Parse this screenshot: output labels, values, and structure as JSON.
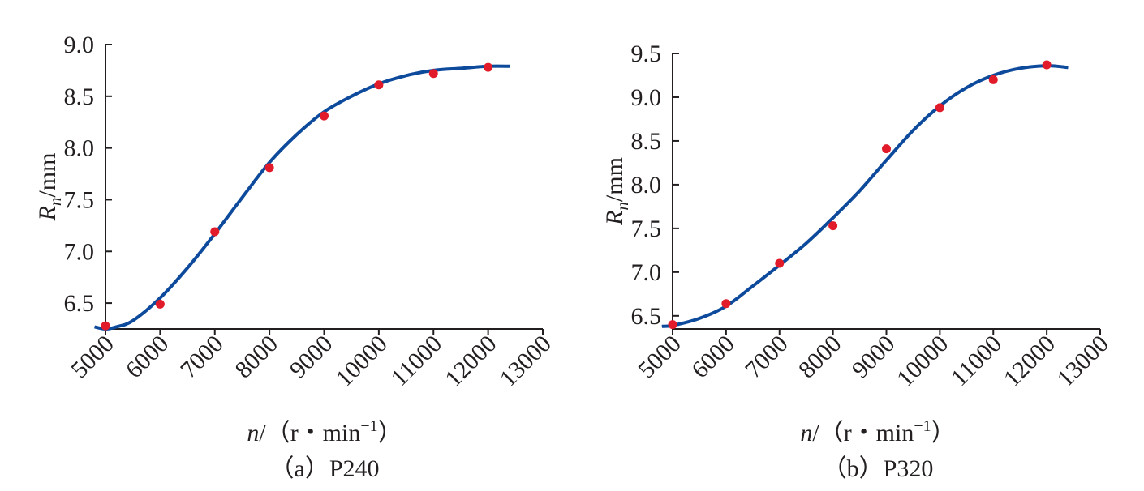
{
  "chart_data": [
    {
      "type": "line",
      "caption": "（a）P240",
      "xlabel": {
        "var": "n",
        "unit_prefix": "/（r・min",
        "unit_sup": "−1",
        "unit_suffix": "）"
      },
      "ylabel": {
        "var": "R",
        "sub": "n",
        "unit": "/mm"
      },
      "xlim": [
        5000,
        13000
      ],
      "ylim": [
        6.25,
        9.0
      ],
      "x_ticks": [
        5000,
        6000,
        7000,
        8000,
        9000,
        10000,
        11000,
        12000,
        13000
      ],
      "y_ticks": [
        6.5,
        7.0,
        7.5,
        8.0,
        8.5,
        9.0
      ],
      "tick_labels_x": [
        "5000",
        "6000",
        "7000",
        "8000",
        "9000",
        "10000",
        "11000",
        "12000",
        "13000"
      ],
      "tick_labels_y": [
        "6.5",
        "7.0",
        "7.5",
        "8.0",
        "8.5",
        "9.0"
      ],
      "series": [
        {
          "kind": "points",
          "color": "#e21b2a",
          "x": [
            5000,
            6000,
            7000,
            8000,
            9000,
            10000,
            11000,
            12000
          ],
          "y": [
            6.28,
            6.49,
            7.19,
            7.81,
            8.31,
            8.61,
            8.72,
            8.78
          ]
        },
        {
          "kind": "curve",
          "color": "#0d4a9c",
          "x": [
            4800,
            5000,
            5200,
            5500,
            6000,
            6500,
            7000,
            7500,
            8000,
            8500,
            9000,
            9500,
            10000,
            10500,
            11000,
            11500,
            12000,
            12400
          ],
          "y": [
            6.27,
            6.25,
            6.27,
            6.33,
            6.55,
            6.84,
            7.17,
            7.52,
            7.86,
            8.13,
            8.35,
            8.5,
            8.62,
            8.7,
            8.75,
            8.77,
            8.79,
            8.79
          ]
        }
      ]
    },
    {
      "type": "line",
      "caption": "（b）P320",
      "xlabel": {
        "var": "n",
        "unit_prefix": "/（r・min",
        "unit_sup": "−1",
        "unit_suffix": "）"
      },
      "ylabel": {
        "var": "R",
        "sub": "n",
        "unit": "/mm"
      },
      "xlim": [
        5000,
        13000
      ],
      "ylim": [
        6.35,
        9.5
      ],
      "x_ticks": [
        5000,
        6000,
        7000,
        8000,
        9000,
        10000,
        11000,
        12000,
        13000
      ],
      "y_ticks": [
        6.5,
        7.0,
        7.5,
        8.0,
        8.5,
        9.0,
        9.5
      ],
      "tick_labels_x": [
        "5000",
        "6000",
        "7000",
        "8000",
        "9000",
        "10000",
        "11000",
        "12000",
        "13000"
      ],
      "tick_labels_y": [
        "6.5",
        "7.0",
        "7.5",
        "8.0",
        "8.5",
        "9.0",
        "9.5"
      ],
      "series": [
        {
          "kind": "points",
          "color": "#e21b2a",
          "x": [
            5000,
            6000,
            7000,
            8000,
            9000,
            10000,
            11000,
            12000
          ],
          "y": [
            6.4,
            6.64,
            7.1,
            7.53,
            8.41,
            8.88,
            9.2,
            9.37
          ]
        },
        {
          "kind": "curve",
          "color": "#0d4a9c",
          "x": [
            4800,
            5000,
            5500,
            6000,
            6500,
            7000,
            7500,
            8000,
            8500,
            9000,
            9500,
            10000,
            10500,
            11000,
            11500,
            12000,
            12400
          ],
          "y": [
            6.38,
            6.39,
            6.47,
            6.61,
            6.84,
            7.08,
            7.33,
            7.62,
            7.93,
            8.28,
            8.62,
            8.9,
            9.11,
            9.25,
            9.33,
            9.36,
            9.34
          ]
        }
      ]
    }
  ]
}
